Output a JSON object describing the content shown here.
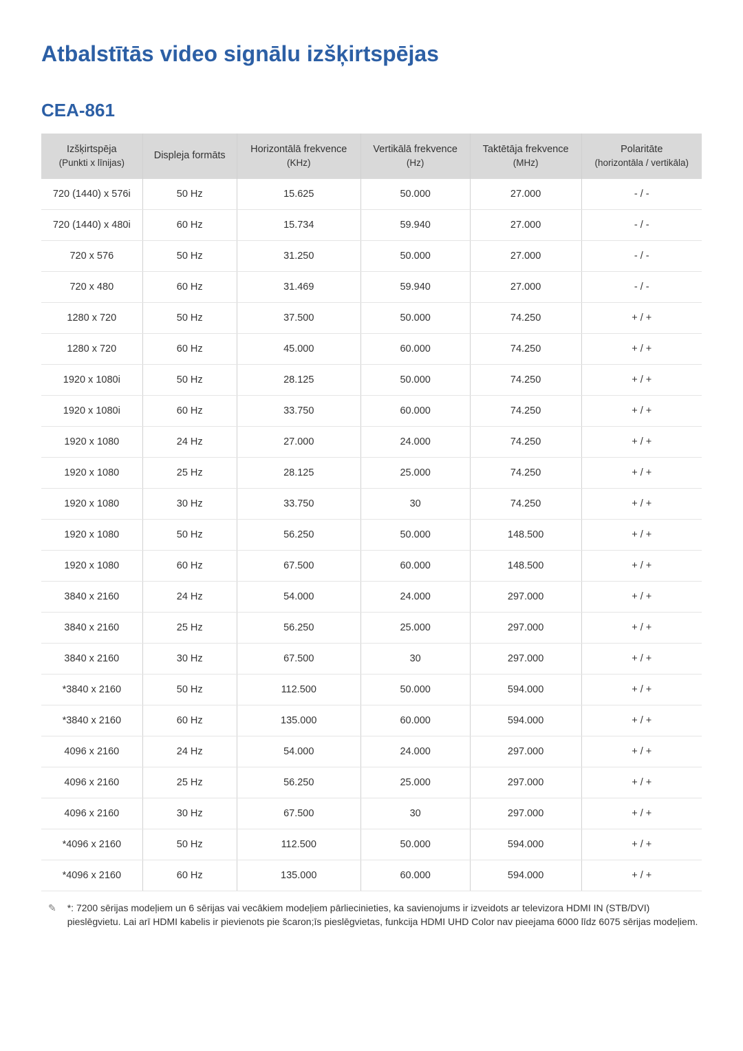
{
  "title": "Atbalstītās video signālu izšķirtspējas",
  "section": "CEA-861",
  "colors": {
    "heading": "#2c5fa5",
    "text": "#333333",
    "header_bg": "#d9d9d9",
    "row_border": "#e5e5e5",
    "col_border": "#d0d0d0",
    "background": "#ffffff"
  },
  "table": {
    "columns": [
      {
        "main": "Izšķirtspēja",
        "sub": "(Punkti x līnijas)"
      },
      {
        "main": "Displeja formāts",
        "sub": ""
      },
      {
        "main": "Horizontālā frekvence",
        "sub": "(KHz)"
      },
      {
        "main": "Vertikālā frekvence",
        "sub": "(Hz)"
      },
      {
        "main": "Taktētāja frekvence",
        "sub": "(MHz)"
      },
      {
        "main": "Polaritāte",
        "sub": "(horizontāla / vertikāla)"
      }
    ],
    "rows": [
      [
        "720 (1440) x 576i",
        "50 Hz",
        "15.625",
        "50.000",
        "27.000",
        "- / -"
      ],
      [
        "720 (1440) x 480i",
        "60 Hz",
        "15.734",
        "59.940",
        "27.000",
        "- / -"
      ],
      [
        "720 x 576",
        "50 Hz",
        "31.250",
        "50.000",
        "27.000",
        "- / -"
      ],
      [
        "720 x 480",
        "60 Hz",
        "31.469",
        "59.940",
        "27.000",
        "- / -"
      ],
      [
        "1280 x 720",
        "50 Hz",
        "37.500",
        "50.000",
        "74.250",
        "+ / +"
      ],
      [
        "1280 x 720",
        "60 Hz",
        "45.000",
        "60.000",
        "74.250",
        "+ / +"
      ],
      [
        "1920 x 1080i",
        "50 Hz",
        "28.125",
        "50.000",
        "74.250",
        "+ / +"
      ],
      [
        "1920 x 1080i",
        "60 Hz",
        "33.750",
        "60.000",
        "74.250",
        "+ / +"
      ],
      [
        "1920 x 1080",
        "24 Hz",
        "27.000",
        "24.000",
        "74.250",
        "+ / +"
      ],
      [
        "1920 x 1080",
        "25 Hz",
        "28.125",
        "25.000",
        "74.250",
        "+ / +"
      ],
      [
        "1920 x 1080",
        "30 Hz",
        "33.750",
        "30",
        "74.250",
        "+ / +"
      ],
      [
        "1920 x 1080",
        "50 Hz",
        "56.250",
        "50.000",
        "148.500",
        "+ / +"
      ],
      [
        "1920 x 1080",
        "60 Hz",
        "67.500",
        "60.000",
        "148.500",
        "+ / +"
      ],
      [
        "3840 x 2160",
        "24 Hz",
        "54.000",
        "24.000",
        "297.000",
        "+ / +"
      ],
      [
        "3840 x 2160",
        "25 Hz",
        "56.250",
        "25.000",
        "297.000",
        "+ / +"
      ],
      [
        "3840 x 2160",
        "30 Hz",
        "67.500",
        "30",
        "297.000",
        "+ / +"
      ],
      [
        "*3840 x 2160",
        "50 Hz",
        "112.500",
        "50.000",
        "594.000",
        "+ / +"
      ],
      [
        "*3840 x 2160",
        "60 Hz",
        "135.000",
        "60.000",
        "594.000",
        "+ / +"
      ],
      [
        "4096 x 2160",
        "24 Hz",
        "54.000",
        "24.000",
        "297.000",
        "+ / +"
      ],
      [
        "4096 x 2160",
        "25 Hz",
        "56.250",
        "25.000",
        "297.000",
        "+ / +"
      ],
      [
        "4096 x 2160",
        "30 Hz",
        "67.500",
        "30",
        "297.000",
        "+ / +"
      ],
      [
        "*4096 x 2160",
        "50 Hz",
        "112.500",
        "50.000",
        "594.000",
        "+ / +"
      ],
      [
        "*4096 x 2160",
        "60 Hz",
        "135.000",
        "60.000",
        "594.000",
        "+ / +"
      ]
    ]
  },
  "footnote": {
    "icon": "✎",
    "text": "*: 7200 sērijas modeļiem un 6 sērijas vai vecākiem modeļiem pārliecinieties, ka savienojums ir izveidots ar televizora HDMI IN (STB/DVI) pieslēgvietu. Lai arī HDMI kabelis ir pievienots pie šcaron;īs pieslēgvietas, funkcija HDMI UHD Color nav pieejama 6000 līdz 6075 sērijas modeļiem."
  }
}
